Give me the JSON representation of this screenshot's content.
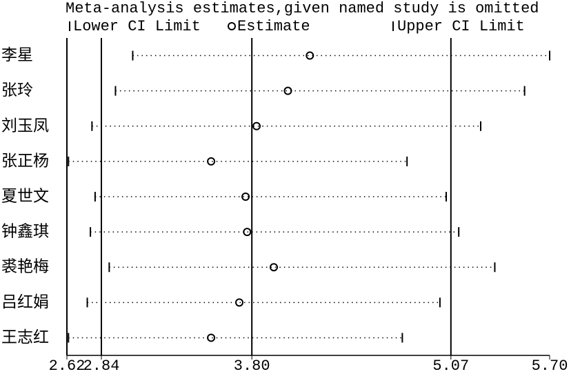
{
  "chart_data": {
    "type": "ci",
    "title": "Meta-analysis estimates,given named study is omitted",
    "categories": [
      "李星",
      "张玲",
      "刘玉凤",
      "张正杨",
      "夏世文",
      "钟鑫琪",
      "裘艳梅",
      "吕红娟",
      "王志红"
    ],
    "series": [
      {
        "name": "Lower CI Limit",
        "color": "#000000",
        "values": [
          3.04,
          2.93,
          2.78,
          2.63,
          2.8,
          2.77,
          2.89,
          2.75,
          2.63
        ]
      },
      {
        "name": "Estimate",
        "color": "#000000",
        "values": [
          4.17,
          4.03,
          3.83,
          3.54,
          3.76,
          3.77,
          3.94,
          3.72,
          3.54
        ]
      },
      {
        "name": "Upper CI Limit",
        "color": "#000000",
        "values": [
          5.7,
          5.54,
          5.26,
          4.79,
          5.04,
          5.12,
          5.35,
          5.0,
          4.76
        ]
      }
    ],
    "xlim": [
      2.62,
      5.7
    ],
    "xticks": [
      2.62,
      2.84,
      {
        "value": 3.8,
        "label": "3.80"
      },
      5.07,
      {
        "value": 5.7,
        "label": "5.70"
      }
    ],
    "grid": true
  }
}
